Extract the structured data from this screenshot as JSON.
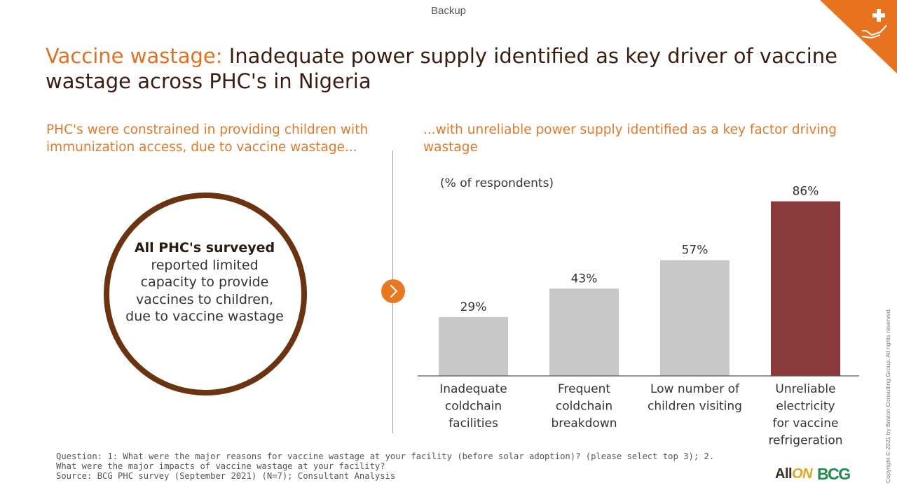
{
  "header": {
    "backup_label": "Backup",
    "title_accent": "Vaccine wastage:",
    "title_rest": "Inadequate power supply identified as key driver of vaccine wastage across PHC's in Nigeria"
  },
  "left_panel": {
    "subheading": "PHC's were constrained in providing children with immunization access, due to vaccine wastage...",
    "circle_bold": "All PHC's surveyed",
    "circle_text": "reported limited capacity to provide vaccines to children, due to vaccine wastage"
  },
  "right_panel": {
    "subheading": "...with unreliable power supply identified as a key factor driving wastage",
    "unit_label": "(% of respondents)"
  },
  "chart_data": {
    "type": "bar",
    "categories": [
      [
        "Inadequate",
        "coldchain",
        "facilities"
      ],
      [
        "Frequent",
        "coldchain",
        "breakdown"
      ],
      [
        "Low number of",
        "children visiting"
      ],
      [
        "Unreliable",
        "electricity",
        "for vaccine",
        "refrigeration"
      ]
    ],
    "values": [
      29,
      43,
      57,
      86
    ],
    "value_labels": [
      "29%",
      "43%",
      "57%",
      "86%"
    ],
    "ylim": [
      0,
      100
    ],
    "bar_colors": [
      "#c8c8c8",
      "#c8c8c8",
      "#c8c8c8",
      "#8b3a3c"
    ],
    "grid": false
  },
  "footnote": {
    "question": "Question: 1: What were the major reasons for vaccine wastage at your facility (before solar adoption)? (please select top 3); 2. What were the major impacts of vaccine wastage at your facility?",
    "source": "Source: BCG PHC survey (September 2021) (N=7); Consultant Analysis"
  },
  "copyright": "Copyright © 2021 by Boston Consulting Group. All rights reserved.",
  "logos": {
    "allon_prefix": "All",
    "allon_suffix": "ON",
    "bcg": "BCG"
  },
  "colors": {
    "accent": "#e07a2b",
    "highlight_bar": "#8b3a3c",
    "neutral_bar": "#c8c8c8",
    "circle": "#6a3410"
  },
  "icons": {
    "corner": "hand-with-plus-icon",
    "arrow": "chevron-right-icon"
  }
}
